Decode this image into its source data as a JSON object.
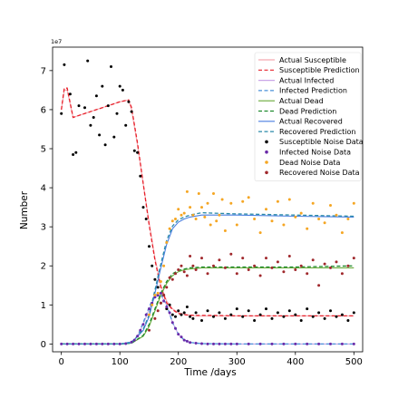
{
  "chart_data": {
    "type": "line",
    "title": "",
    "xlabel": "Time /days",
    "ylabel": "Number",
    "y_multiplier": "1e7",
    "xlim": [
      -15,
      515
    ],
    "ylim": [
      -0.2,
      7.6
    ],
    "xticks": [
      0,
      100,
      200,
      300,
      400,
      500
    ],
    "yticks": [
      0,
      1,
      2,
      3,
      4,
      5,
      6,
      7
    ],
    "grid": false,
    "legend_position": "top-right",
    "colors": {
      "susceptible_actual": "#f4a9b0",
      "susceptible_pred": "#e8202a",
      "infected_actual": "#c9a6e8",
      "infected_pred": "#4a90d9",
      "dead_actual": "#6aaa3a",
      "dead_pred": "#1f8a2e",
      "recovered_actual": "#4a7fe0",
      "recovered_pred": "#2a8aa8",
      "susceptible_noise": "#000000",
      "infected_noise": "#6a2aa8",
      "dead_noise": "#f5a623",
      "recovered_noise": "#a0282c"
    },
    "series": [
      {
        "name": "Actual Susceptible",
        "kind": "line",
        "style": "solid",
        "color_key": "susceptible_actual",
        "x": [
          0,
          5,
          10,
          20,
          60,
          100,
          115,
          120,
          130,
          140,
          150,
          160,
          170,
          180,
          190,
          200,
          215,
          230,
          260,
          300,
          400,
          500
        ],
        "y": [
          6.0,
          6.5,
          6.5,
          5.8,
          6.0,
          6.2,
          6.25,
          6.0,
          5.1,
          4.1,
          3.1,
          2.2,
          1.5,
          1.1,
          0.9,
          0.8,
          0.75,
          0.72,
          0.72,
          0.72,
          0.72,
          0.72
        ]
      },
      {
        "name": "Susceptible Prediction",
        "kind": "line",
        "style": "dashed",
        "color_key": "susceptible_pred",
        "x": [
          0,
          5,
          10,
          20,
          60,
          100,
          115,
          120,
          130,
          140,
          150,
          160,
          170,
          180,
          190,
          200,
          215,
          230,
          260,
          300,
          400,
          500
        ],
        "y": [
          6.0,
          6.55,
          6.55,
          5.8,
          6.0,
          6.2,
          6.25,
          6.05,
          5.15,
          4.1,
          3.05,
          2.15,
          1.45,
          1.05,
          0.88,
          0.78,
          0.74,
          0.73,
          0.73,
          0.72,
          0.72,
          0.72
        ]
      },
      {
        "name": "Actual Infected",
        "kind": "line",
        "style": "solid",
        "color_key": "infected_actual",
        "x": [
          0,
          100,
          120,
          130,
          140,
          150,
          160,
          170,
          180,
          190,
          200,
          210,
          220,
          240,
          300,
          400,
          500
        ],
        "y": [
          0,
          0,
          0.05,
          0.2,
          0.5,
          0.9,
          1.2,
          1.25,
          1.0,
          0.55,
          0.25,
          0.1,
          0.04,
          0.01,
          0,
          0,
          0
        ]
      },
      {
        "name": "Infected Prediction",
        "kind": "line",
        "style": "dashed",
        "color_key": "infected_pred",
        "x": [
          0,
          100,
          120,
          130,
          140,
          150,
          160,
          170,
          180,
          190,
          200,
          210,
          220,
          240,
          300,
          400,
          500
        ],
        "y": [
          0,
          0,
          0.05,
          0.2,
          0.55,
          0.95,
          1.25,
          1.28,
          1.0,
          0.55,
          0.25,
          0.1,
          0.04,
          0.01,
          0,
          0,
          0
        ]
      },
      {
        "name": "Actual Dead",
        "kind": "line",
        "style": "solid",
        "color_key": "dead_actual",
        "x": [
          0,
          100,
          120,
          140,
          150,
          160,
          170,
          180,
          190,
          200,
          210,
          220,
          240,
          300,
          400,
          500
        ],
        "y": [
          0,
          0,
          0.02,
          0.2,
          0.45,
          0.85,
          1.25,
          1.55,
          1.75,
          1.85,
          1.9,
          1.92,
          1.95,
          1.95,
          1.95,
          1.95
        ]
      },
      {
        "name": "Dead Prediction",
        "kind": "line",
        "style": "dashed",
        "color_key": "dead_pred",
        "x": [
          0,
          100,
          120,
          140,
          150,
          160,
          170,
          180,
          190,
          200,
          210,
          220,
          240,
          300,
          400,
          500
        ],
        "y": [
          0,
          0,
          0.02,
          0.22,
          0.5,
          0.9,
          1.3,
          1.6,
          1.8,
          1.88,
          1.92,
          1.95,
          1.97,
          1.97,
          1.97,
          2.0
        ]
      },
      {
        "name": "Actual Recovered",
        "kind": "line",
        "style": "solid",
        "color_key": "recovered_actual",
        "x": [
          0,
          100,
          120,
          140,
          150,
          160,
          170,
          180,
          190,
          200,
          210,
          220,
          240,
          260,
          300,
          400,
          500
        ],
        "y": [
          0,
          0,
          0.03,
          0.35,
          0.7,
          1.3,
          1.95,
          2.55,
          2.95,
          3.12,
          3.2,
          3.25,
          3.3,
          3.3,
          3.3,
          3.27,
          3.25
        ]
      },
      {
        "name": "Recovered Prediction",
        "kind": "line",
        "style": "dashed",
        "color_key": "recovered_pred",
        "x": [
          0,
          100,
          120,
          140,
          150,
          160,
          170,
          180,
          190,
          200,
          210,
          220,
          240,
          260,
          300,
          400,
          500
        ],
        "y": [
          0,
          0,
          0.03,
          0.38,
          0.75,
          1.38,
          2.05,
          2.65,
          3.02,
          3.18,
          3.25,
          3.3,
          3.36,
          3.35,
          3.33,
          3.3,
          3.27
        ]
      },
      {
        "name": "Susceptible Noise Data",
        "kind": "scatter",
        "color_key": "susceptible_noise",
        "x": [
          0,
          5,
          15,
          20,
          25,
          30,
          40,
          45,
          50,
          55,
          60,
          65,
          70,
          75,
          80,
          85,
          90,
          95,
          100,
          105,
          110,
          115,
          120,
          125,
          130,
          135,
          140,
          145,
          150,
          155,
          160,
          165,
          170,
          175,
          180,
          185,
          190,
          195,
          200,
          205,
          210,
          215,
          220,
          225,
          230,
          240,
          250,
          260,
          270,
          280,
          290,
          300,
          310,
          320,
          330,
          340,
          350,
          360,
          370,
          380,
          390,
          400,
          410,
          420,
          430,
          440,
          450,
          460,
          470,
          480,
          490,
          500
        ],
        "y": [
          5.9,
          7.15,
          6.4,
          4.85,
          4.9,
          6.1,
          6.05,
          7.25,
          5.6,
          5.8,
          6.35,
          5.35,
          6.6,
          5.1,
          6.1,
          7.1,
          5.3,
          5.9,
          6.6,
          6.5,
          5.6,
          6.2,
          5.95,
          4.95,
          4.9,
          4.3,
          3.5,
          3.2,
          2.5,
          2.0,
          1.65,
          1.45,
          1.05,
          1.25,
          0.9,
          1.0,
          0.75,
          0.7,
          0.85,
          0.75,
          0.8,
          0.95,
          0.7,
          0.65,
          0.8,
          0.6,
          0.85,
          0.7,
          0.8,
          0.65,
          0.75,
          0.9,
          0.7,
          0.85,
          0.6,
          0.75,
          0.9,
          0.65,
          0.8,
          0.7,
          0.85,
          0.75,
          0.6,
          0.9,
          0.7,
          0.8,
          0.65,
          0.85,
          0.7,
          0.75,
          0.6,
          0.8
        ]
      },
      {
        "name": "Infected Noise Data",
        "kind": "scatter",
        "color_key": "infected_noise",
        "x": [
          0,
          10,
          20,
          30,
          40,
          50,
          60,
          70,
          80,
          90,
          100,
          110,
          120,
          125,
          130,
          135,
          140,
          145,
          150,
          155,
          160,
          165,
          170,
          175,
          180,
          185,
          190,
          195,
          200,
          205,
          210,
          215,
          220,
          230,
          240,
          250,
          260,
          270,
          280,
          290,
          300,
          320,
          340,
          360,
          380,
          400,
          420,
          440,
          460,
          480,
          500
        ],
        "y": [
          0,
          0,
          0,
          0,
          0,
          0,
          0,
          0,
          0,
          0,
          0,
          0.01,
          0.05,
          0.1,
          0.2,
          0.35,
          0.5,
          0.75,
          0.9,
          1.05,
          1.2,
          1.25,
          1.3,
          1.1,
          0.95,
          0.8,
          0.55,
          0.4,
          0.25,
          0.18,
          0.1,
          0.07,
          0.04,
          0.02,
          0.01,
          0,
          0,
          0,
          0,
          0,
          0,
          0,
          0,
          0,
          0,
          0,
          0,
          0,
          0,
          0,
          0
        ]
      },
      {
        "name": "Dead Noise Data",
        "kind": "scatter",
        "color_key": "dead_noise",
        "x": [
          150,
          155,
          160,
          165,
          170,
          175,
          180,
          185,
          190,
          195,
          200,
          205,
          210,
          215,
          220,
          225,
          230,
          235,
          240,
          245,
          250,
          255,
          260,
          265,
          270,
          275,
          280,
          290,
          300,
          310,
          320,
          330,
          340,
          350,
          360,
          370,
          380,
          390,
          400,
          410,
          420,
          430,
          440,
          450,
          460,
          470,
          480,
          490,
          500
        ],
        "y": [
          0.75,
          1.0,
          1.25,
          1.3,
          1.6,
          2.0,
          2.6,
          2.95,
          3.15,
          3.2,
          3.45,
          3.3,
          3.35,
          3.9,
          3.5,
          3.3,
          3.2,
          3.85,
          3.5,
          3.25,
          3.6,
          3.05,
          3.85,
          3.15,
          3.3,
          3.7,
          2.9,
          3.6,
          3.05,
          3.65,
          3.75,
          3.2,
          2.85,
          3.45,
          3.15,
          3.65,
          3.05,
          3.7,
          3.25,
          3.35,
          2.95,
          3.6,
          3.2,
          3.1,
          3.55,
          3.3,
          2.85,
          3.2,
          3.6
        ]
      },
      {
        "name": "Recovered Noise Data",
        "kind": "scatter",
        "color_key": "recovered_noise",
        "x": [
          150,
          160,
          165,
          170,
          175,
          180,
          185,
          190,
          195,
          200,
          205,
          210,
          215,
          220,
          225,
          230,
          240,
          250,
          260,
          270,
          280,
          290,
          300,
          310,
          320,
          330,
          340,
          350,
          360,
          370,
          380,
          390,
          400,
          410,
          420,
          430,
          440,
          450,
          460,
          470,
          480,
          490,
          500
        ],
        "y": [
          0.35,
          0.65,
          0.85,
          1.05,
          1.25,
          1.45,
          1.7,
          1.65,
          1.8,
          1.9,
          2.0,
          1.85,
          1.75,
          2.25,
          2.0,
          1.9,
          2.2,
          1.8,
          2.0,
          2.15,
          1.95,
          2.3,
          1.8,
          2.2,
          1.9,
          2.0,
          1.75,
          2.2,
          1.95,
          2.1,
          1.85,
          2.25,
          1.9,
          2.0,
          1.8,
          2.15,
          1.5,
          2.05,
          1.95,
          2.1,
          1.8,
          2.0,
          2.2
        ]
      }
    ]
  }
}
